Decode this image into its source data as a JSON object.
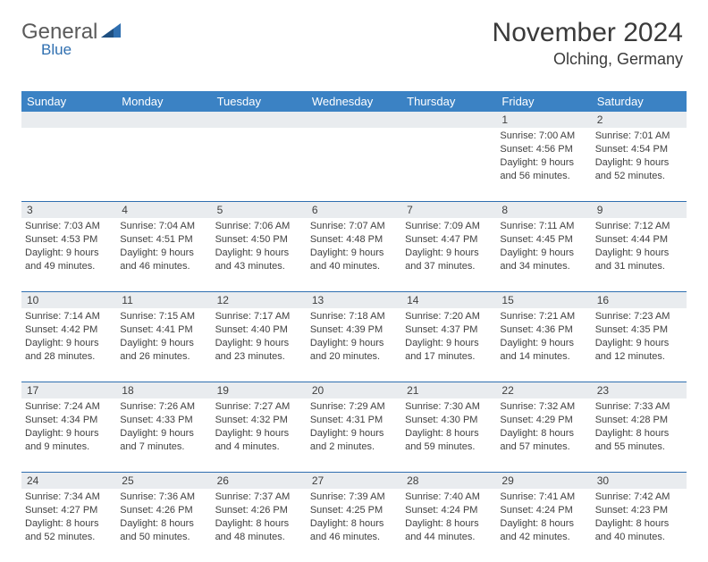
{
  "logo": {
    "main": "General",
    "accent": "Blue"
  },
  "header": {
    "title": "November 2024",
    "location": "Olching, Germany"
  },
  "colors": {
    "header_bg": "#3b82c4",
    "daybar_bg": "#e9ecef",
    "week_border": "#2f6fb0",
    "accent": "#2f6fb0"
  },
  "dayNames": [
    "Sunday",
    "Monday",
    "Tuesday",
    "Wednesday",
    "Thursday",
    "Friday",
    "Saturday"
  ],
  "weeks": [
    {
      "nums": [
        "",
        "",
        "",
        "",
        "",
        "1",
        "2"
      ],
      "cells": [
        null,
        null,
        null,
        null,
        null,
        {
          "sunrise": "Sunrise: 7:00 AM",
          "sunset": "Sunset: 4:56 PM",
          "day1": "Daylight: 9 hours",
          "day2": "and 56 minutes."
        },
        {
          "sunrise": "Sunrise: 7:01 AM",
          "sunset": "Sunset: 4:54 PM",
          "day1": "Daylight: 9 hours",
          "day2": "and 52 minutes."
        }
      ]
    },
    {
      "nums": [
        "3",
        "4",
        "5",
        "6",
        "7",
        "8",
        "9"
      ],
      "cells": [
        {
          "sunrise": "Sunrise: 7:03 AM",
          "sunset": "Sunset: 4:53 PM",
          "day1": "Daylight: 9 hours",
          "day2": "and 49 minutes."
        },
        {
          "sunrise": "Sunrise: 7:04 AM",
          "sunset": "Sunset: 4:51 PM",
          "day1": "Daylight: 9 hours",
          "day2": "and 46 minutes."
        },
        {
          "sunrise": "Sunrise: 7:06 AM",
          "sunset": "Sunset: 4:50 PM",
          "day1": "Daylight: 9 hours",
          "day2": "and 43 minutes."
        },
        {
          "sunrise": "Sunrise: 7:07 AM",
          "sunset": "Sunset: 4:48 PM",
          "day1": "Daylight: 9 hours",
          "day2": "and 40 minutes."
        },
        {
          "sunrise": "Sunrise: 7:09 AM",
          "sunset": "Sunset: 4:47 PM",
          "day1": "Daylight: 9 hours",
          "day2": "and 37 minutes."
        },
        {
          "sunrise": "Sunrise: 7:11 AM",
          "sunset": "Sunset: 4:45 PM",
          "day1": "Daylight: 9 hours",
          "day2": "and 34 minutes."
        },
        {
          "sunrise": "Sunrise: 7:12 AM",
          "sunset": "Sunset: 4:44 PM",
          "day1": "Daylight: 9 hours",
          "day2": "and 31 minutes."
        }
      ]
    },
    {
      "nums": [
        "10",
        "11",
        "12",
        "13",
        "14",
        "15",
        "16"
      ],
      "cells": [
        {
          "sunrise": "Sunrise: 7:14 AM",
          "sunset": "Sunset: 4:42 PM",
          "day1": "Daylight: 9 hours",
          "day2": "and 28 minutes."
        },
        {
          "sunrise": "Sunrise: 7:15 AM",
          "sunset": "Sunset: 4:41 PM",
          "day1": "Daylight: 9 hours",
          "day2": "and 26 minutes."
        },
        {
          "sunrise": "Sunrise: 7:17 AM",
          "sunset": "Sunset: 4:40 PM",
          "day1": "Daylight: 9 hours",
          "day2": "and 23 minutes."
        },
        {
          "sunrise": "Sunrise: 7:18 AM",
          "sunset": "Sunset: 4:39 PM",
          "day1": "Daylight: 9 hours",
          "day2": "and 20 minutes."
        },
        {
          "sunrise": "Sunrise: 7:20 AM",
          "sunset": "Sunset: 4:37 PM",
          "day1": "Daylight: 9 hours",
          "day2": "and 17 minutes."
        },
        {
          "sunrise": "Sunrise: 7:21 AM",
          "sunset": "Sunset: 4:36 PM",
          "day1": "Daylight: 9 hours",
          "day2": "and 14 minutes."
        },
        {
          "sunrise": "Sunrise: 7:23 AM",
          "sunset": "Sunset: 4:35 PM",
          "day1": "Daylight: 9 hours",
          "day2": "and 12 minutes."
        }
      ]
    },
    {
      "nums": [
        "17",
        "18",
        "19",
        "20",
        "21",
        "22",
        "23"
      ],
      "cells": [
        {
          "sunrise": "Sunrise: 7:24 AM",
          "sunset": "Sunset: 4:34 PM",
          "day1": "Daylight: 9 hours",
          "day2": "and 9 minutes."
        },
        {
          "sunrise": "Sunrise: 7:26 AM",
          "sunset": "Sunset: 4:33 PM",
          "day1": "Daylight: 9 hours",
          "day2": "and 7 minutes."
        },
        {
          "sunrise": "Sunrise: 7:27 AM",
          "sunset": "Sunset: 4:32 PM",
          "day1": "Daylight: 9 hours",
          "day2": "and 4 minutes."
        },
        {
          "sunrise": "Sunrise: 7:29 AM",
          "sunset": "Sunset: 4:31 PM",
          "day1": "Daylight: 9 hours",
          "day2": "and 2 minutes."
        },
        {
          "sunrise": "Sunrise: 7:30 AM",
          "sunset": "Sunset: 4:30 PM",
          "day1": "Daylight: 8 hours",
          "day2": "and 59 minutes."
        },
        {
          "sunrise": "Sunrise: 7:32 AM",
          "sunset": "Sunset: 4:29 PM",
          "day1": "Daylight: 8 hours",
          "day2": "and 57 minutes."
        },
        {
          "sunrise": "Sunrise: 7:33 AM",
          "sunset": "Sunset: 4:28 PM",
          "day1": "Daylight: 8 hours",
          "day2": "and 55 minutes."
        }
      ]
    },
    {
      "nums": [
        "24",
        "25",
        "26",
        "27",
        "28",
        "29",
        "30"
      ],
      "cells": [
        {
          "sunrise": "Sunrise: 7:34 AM",
          "sunset": "Sunset: 4:27 PM",
          "day1": "Daylight: 8 hours",
          "day2": "and 52 minutes."
        },
        {
          "sunrise": "Sunrise: 7:36 AM",
          "sunset": "Sunset: 4:26 PM",
          "day1": "Daylight: 8 hours",
          "day2": "and 50 minutes."
        },
        {
          "sunrise": "Sunrise: 7:37 AM",
          "sunset": "Sunset: 4:26 PM",
          "day1": "Daylight: 8 hours",
          "day2": "and 48 minutes."
        },
        {
          "sunrise": "Sunrise: 7:39 AM",
          "sunset": "Sunset: 4:25 PM",
          "day1": "Daylight: 8 hours",
          "day2": "and 46 minutes."
        },
        {
          "sunrise": "Sunrise: 7:40 AM",
          "sunset": "Sunset: 4:24 PM",
          "day1": "Daylight: 8 hours",
          "day2": "and 44 minutes."
        },
        {
          "sunrise": "Sunrise: 7:41 AM",
          "sunset": "Sunset: 4:24 PM",
          "day1": "Daylight: 8 hours",
          "day2": "and 42 minutes."
        },
        {
          "sunrise": "Sunrise: 7:42 AM",
          "sunset": "Sunset: 4:23 PM",
          "day1": "Daylight: 8 hours",
          "day2": "and 40 minutes."
        }
      ]
    }
  ]
}
